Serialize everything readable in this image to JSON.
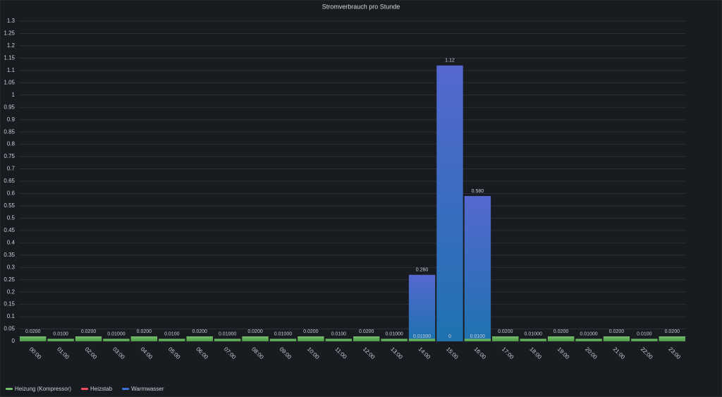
{
  "chart_data": {
    "type": "bar",
    "stacked": true,
    "title": "Stromverbrauch pro Stunde",
    "categories": [
      "00:00",
      "01:00",
      "02:00",
      "03:00",
      "04:00",
      "05:00",
      "06:00",
      "07:00",
      "08:00",
      "09:00",
      "10:00",
      "11:00",
      "12:00",
      "13:00",
      "14:00",
      "15:00",
      "16:00",
      "17:00",
      "18:00",
      "19:00",
      "20:00",
      "21:00",
      "22:00",
      "23:00"
    ],
    "series": [
      {
        "name": "Heizung (Kompressor)",
        "color": "#73bf69",
        "values": [
          0.02,
          0.01,
          0.02,
          0.01,
          0.02,
          0.01,
          0.02,
          0.01,
          0.02,
          0.01,
          0.02,
          0.01,
          0.02,
          0.01,
          0.01,
          0,
          0.01,
          0.02,
          0.01,
          0.02,
          0.01,
          0.02,
          0.01,
          0.02
        ],
        "value_labels": [
          "0.0200",
          "0.0100",
          "0.0200",
          "0.01000",
          "0.0200",
          "0.0100",
          "0.0200",
          "0.01000",
          "0.0200",
          "0.01000",
          "0.0200",
          "0.0100",
          "0.0200",
          "0.01000",
          "0.01000",
          "0",
          "0.0100",
          "0.0200",
          "0.01000",
          "0.0200",
          "0.01000",
          "0.0200",
          "0.0100",
          "0.0200"
        ]
      },
      {
        "name": "Heizstab",
        "color": "#f2495c",
        "values": [
          null,
          null,
          null,
          null,
          null,
          null,
          null,
          null,
          null,
          null,
          null,
          null,
          null,
          null,
          null,
          null,
          null,
          null,
          null,
          null,
          null,
          null,
          null,
          null
        ]
      },
      {
        "name": "Warmwasser",
        "color": "#3d71d9",
        "values": [
          null,
          null,
          null,
          null,
          null,
          null,
          null,
          null,
          null,
          null,
          null,
          null,
          null,
          null,
          0.26,
          1.12,
          0.58,
          null,
          null,
          null,
          null,
          null,
          null,
          null
        ],
        "value_labels": [
          null,
          null,
          null,
          null,
          null,
          null,
          null,
          null,
          null,
          null,
          null,
          null,
          null,
          null,
          "0.260",
          "1.12",
          "0.580",
          null,
          null,
          null,
          null,
          null,
          null,
          null
        ]
      }
    ],
    "ylim": [
      0,
      1.3
    ],
    "yticks": [
      0,
      0.05,
      0.1,
      0.15,
      0.2,
      0.25,
      0.3,
      0.35,
      0.4,
      0.45,
      0.5,
      0.55,
      0.6,
      0.65,
      0.7,
      0.75,
      0.8,
      0.85,
      0.9,
      0.95,
      1,
      1.05,
      1.1,
      1.15,
      1.2,
      1.25,
      1.3
    ],
    "grid": true,
    "legend": "bottom-left"
  }
}
